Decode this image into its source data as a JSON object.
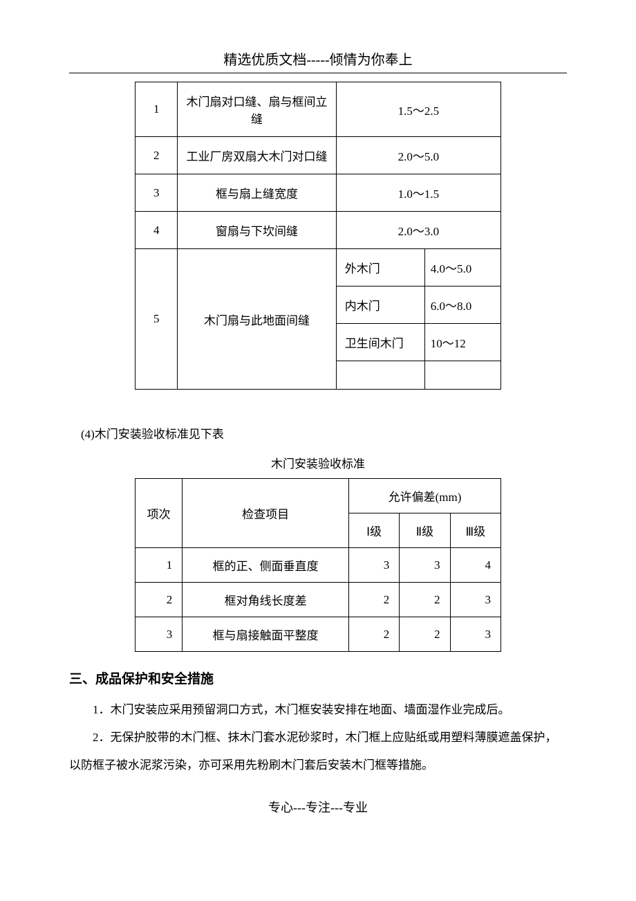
{
  "header": "精选优质文档-----倾情为你奉上",
  "table1": {
    "rows_simple": [
      {
        "num": "1",
        "item": "木门扇对口缝、扇与框间立缝",
        "value": "1.5～2.5"
      },
      {
        "num": "2",
        "item": "工业厂房双扇大木门对口缝",
        "value": "2.0～5.0"
      },
      {
        "num": "3",
        "item": "框与扇上缝宽度",
        "value": "1.0～1.5"
      },
      {
        "num": "4",
        "item": "窗扇与下坎间缝",
        "value": "2.0～3.0"
      }
    ],
    "row5": {
      "num": "5",
      "item": "木门扇与此地面间缝",
      "subrows": [
        {
          "label": "外木门",
          "value": "4.0～5.0"
        },
        {
          "label": "内木门",
          "value": "6.0～8.0"
        },
        {
          "label": "卫生间木门",
          "value": "10～12"
        },
        {
          "label": "",
          "value": ""
        }
      ]
    }
  },
  "caption_text": "(4)木门安装验收标准见下表",
  "table2_caption": "木门安装验收标准",
  "table2": {
    "header": {
      "col_num": "项次",
      "col_item": "检查项目",
      "col_allow": "允许偏差(mm)",
      "grade1": "Ⅰ级",
      "grade2": "Ⅱ级",
      "grade3": "Ⅲ级"
    },
    "rows": [
      {
        "num": "1",
        "item": "框的正、侧面垂直度",
        "g1": "3",
        "g2": "3",
        "g3": "4"
      },
      {
        "num": "2",
        "item": "框对角线长度差",
        "g1": "2",
        "g2": "2",
        "g3": "3"
      },
      {
        "num": "3",
        "item": "框与扇接触面平整度",
        "g1": "2",
        "g2": "2",
        "g3": "3"
      }
    ]
  },
  "section_title": "三、成品保护和安全措施",
  "para1": "1．木门安装应采用预留洞口方式，木门框安装安排在地面、墙面湿作业完成后。",
  "para2": "2．无保护胶带的木门框、抹木门套水泥砂浆时，木门框上应贴纸或用塑料薄膜遮盖保护，",
  "para2b": "以防框子被水泥浆污染，亦可采用先粉刷木门套后安装木门框等措施。",
  "footer": "专心---专注---专业"
}
